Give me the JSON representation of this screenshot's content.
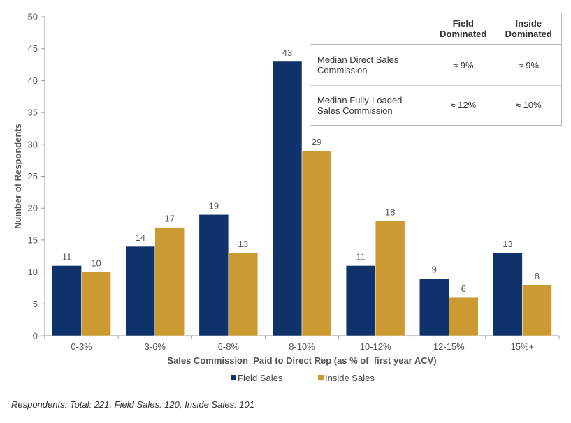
{
  "chart_data": {
    "type": "bar",
    "categories": [
      "0-3%",
      "3-6%",
      "6-8%",
      "8-10%",
      "10-12%",
      "12-15%",
      "15%+"
    ],
    "series": [
      {
        "name": "Field Sales",
        "values": [
          11,
          14,
          19,
          43,
          11,
          9,
          13
        ],
        "color": "#10326a"
      },
      {
        "name": "Inside Sales",
        "values": [
          10,
          17,
          13,
          29,
          18,
          6,
          8
        ],
        "color": "#cc9a33"
      }
    ],
    "xlabel": "Sales Commission  Paid to Direct Rep (as % of  first year ACV)",
    "ylabel": "Number of Respondents",
    "ylim": [
      0,
      50
    ],
    "yticks": [
      0,
      5,
      10,
      15,
      20,
      25,
      30,
      35,
      40,
      45,
      50
    ],
    "grid": false,
    "legend_position": "bottom-center",
    "data_labels": true
  },
  "summary_table": {
    "headers": [
      "",
      "Field\nDominated",
      "Inside\nDominated"
    ],
    "rows": [
      {
        "metric": "Median Direct Sales Commission",
        "field": "≈ 9%",
        "inside": "≈ 9%"
      },
      {
        "metric": "Median Fully-Loaded Sales Commission",
        "field": "≈ 12%",
        "inside": "≈ 10%"
      }
    ]
  },
  "footnote": "Respondents: Total: 221, Field Sales: 120, Inside Sales: 101"
}
